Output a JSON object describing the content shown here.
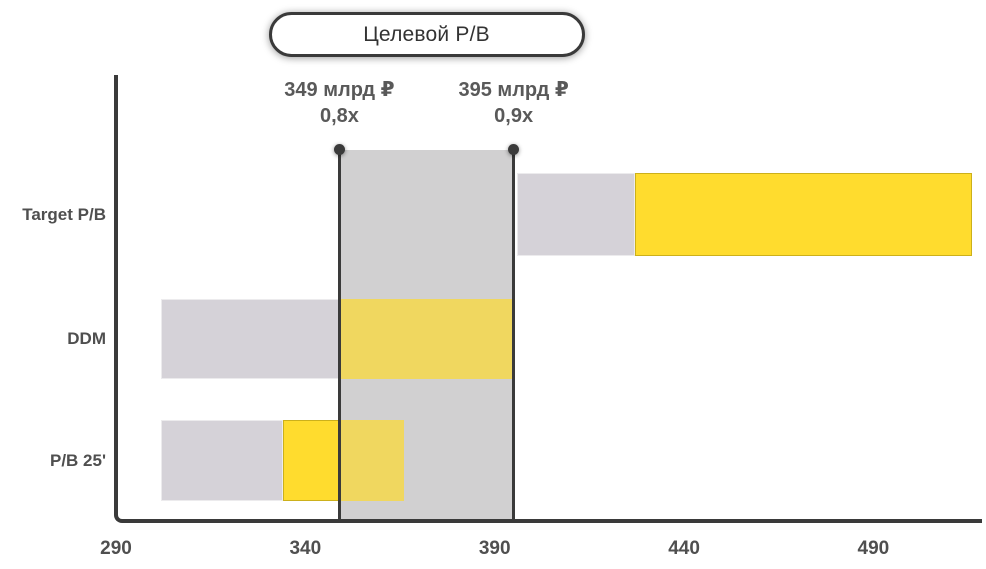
{
  "colors": {
    "axis_dark": "#3a3a3a",
    "band_gray": "#d1d0d1",
    "bar_gray": "#d5d2d8",
    "yellow": "#ffdc2e",
    "yellow_muted": "#f0d75f",
    "label_text": "#4f4f4f",
    "annotation_text": "#595959",
    "title_text": "#333333",
    "connector_white": "#ffffff"
  },
  "chart_data": {
    "type": "bar",
    "orientation": "horizontal",
    "title": "Целевой P/B",
    "xlabel": "",
    "ylabel": "",
    "categories": [
      "Target P/B",
      "DDM",
      "P/B 25'"
    ],
    "rows": [
      {
        "label": "Target P/B",
        "segments": [
          {
            "from": 396,
            "to": 427,
            "color": "bar_gray"
          },
          {
            "from": 427,
            "to": 516,
            "color": "yellow"
          }
        ]
      },
      {
        "label": "DDM",
        "segments": [
          {
            "from": 302,
            "to": 349,
            "color": "bar_gray"
          },
          {
            "from": 349,
            "to": 395,
            "color": "yellow_muted"
          }
        ]
      },
      {
        "label": "P/B 25'",
        "segments": [
          {
            "from": 302,
            "to": 334,
            "color": "bar_gray"
          },
          {
            "from": 334,
            "to": 349,
            "color": "yellow"
          },
          {
            "from": 349,
            "to": 366,
            "color": "yellow_muted"
          }
        ]
      }
    ],
    "band": {
      "from": 349,
      "to": 395,
      "edge_labels": [
        {
          "value": "349 млрд ₽",
          "multiple": "0,8x"
        },
        {
          "value": "395 млрд ₽",
          "multiple": "0,9x"
        }
      ]
    },
    "x_axis": {
      "min": 290,
      "max": 519,
      "ticks": [
        290,
        340,
        390,
        440,
        490
      ],
      "grid": false
    },
    "legend": {
      "visible": false
    }
  }
}
